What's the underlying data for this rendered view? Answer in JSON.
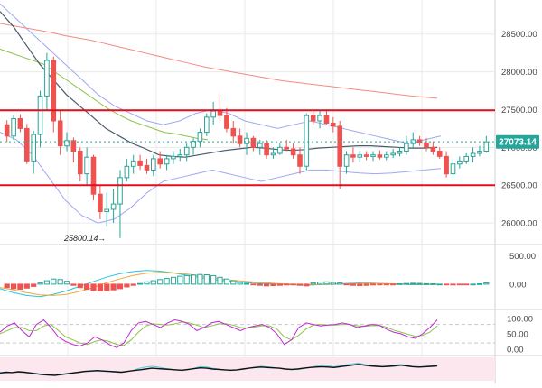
{
  "colors": {
    "up": "#26a69a",
    "up_fill": "#ffffff",
    "down": "#ef5350",
    "level_line": "#e0101e",
    "price_badge": "#26a69a",
    "ma_long": "#f28b82",
    "ma_mid": "#8bc34a",
    "ma_short": "#4a5a6a",
    "bollinger": "#9fa8f0",
    "macd_line": "#26c6da",
    "signal_line": "#f4a742",
    "stoch_k": "#c026d3",
    "stoch_d": "#8bc34a",
    "osc": "#111111",
    "osc_alt": "#4dd0e1",
    "grid": "#eaeaea",
    "dashed_level": "#c8c8c8",
    "rsi_band": "#fde7ef",
    "axis_text": "#444444"
  },
  "chart_data": [
    {
      "type": "candlestick",
      "title": "",
      "y_axis_ticks": [
        "28500.00",
        "28000.00",
        "27500.00",
        "27000.00",
        "26500.00",
        "26000.00"
      ],
      "ylim": [
        25750,
        28950
      ],
      "last_price_label": "27073.14",
      "last_price": 27073.14,
      "low_annotation": "25800.14",
      "low_annotation_value": 25800.14,
      "horizontal_levels": [
        27490,
        26500
      ],
      "candles": [
        [
          27300,
          27360,
          27070,
          27150
        ],
        [
          27150,
          27420,
          27100,
          27380
        ],
        [
          27380,
          27440,
          27200,
          27250
        ],
        [
          27250,
          27310,
          26780,
          26820
        ],
        [
          26820,
          27220,
          26650,
          27170
        ],
        [
          27170,
          27750,
          27000,
          27680
        ],
        [
          27680,
          28250,
          27500,
          28150
        ],
        [
          28150,
          28200,
          27200,
          27350
        ],
        [
          27350,
          27500,
          26900,
          27020
        ],
        [
          27020,
          27200,
          26950,
          27090
        ],
        [
          27090,
          27130,
          26800,
          26950
        ],
        [
          26950,
          27000,
          26550,
          26650
        ],
        [
          26650,
          27000,
          26500,
          26870
        ],
        [
          26870,
          26900,
          26300,
          26380
        ],
        [
          26380,
          26500,
          26050,
          26150
        ],
        [
          26150,
          26400,
          25950,
          26180
        ],
        [
          26180,
          26450,
          26000,
          26250
        ],
        [
          26250,
          26700,
          25800,
          26600
        ],
        [
          26600,
          26850,
          26550,
          26750
        ],
        [
          26750,
          26900,
          26650,
          26820
        ],
        [
          26820,
          26900,
          26700,
          26760
        ],
        [
          26760,
          26850,
          26650,
          26700
        ],
        [
          26700,
          26900,
          26620,
          26850
        ],
        [
          26850,
          26950,
          26720,
          26780
        ],
        [
          26780,
          26900,
          26700,
          26850
        ],
        [
          26850,
          26950,
          26780,
          26880
        ],
        [
          26880,
          26980,
          26820,
          26900
        ],
        [
          26900,
          27050,
          26820,
          27000
        ],
        [
          27000,
          27120,
          26900,
          27080
        ],
        [
          27080,
          27250,
          27000,
          27200
        ],
        [
          27200,
          27450,
          27150,
          27400
        ],
        [
          27400,
          27600,
          27300,
          27480
        ],
        [
          27480,
          27700,
          27350,
          27420
        ],
        [
          27420,
          27520,
          27200,
          27250
        ],
        [
          27250,
          27350,
          27050,
          27150
        ],
        [
          27150,
          27250,
          27000,
          27050
        ],
        [
          27050,
          27200,
          26900,
          27120
        ],
        [
          27120,
          27150,
          26950,
          27000
        ],
        [
          27000,
          27100,
          26900,
          27050
        ],
        [
          27050,
          27100,
          26850,
          26900
        ],
        [
          26900,
          27000,
          26850,
          26920
        ],
        [
          26920,
          27050,
          26900,
          27000
        ],
        [
          27000,
          27100,
          26950,
          26980
        ],
        [
          26980,
          27050,
          26850,
          26900
        ],
        [
          26900,
          27000,
          26650,
          26750
        ],
        [
          26750,
          27450,
          26700,
          27420
        ],
        [
          27420,
          27500,
          27300,
          27350
        ],
        [
          27350,
          27480,
          27250,
          27420
        ],
        [
          27420,
          27480,
          27300,
          27320
        ],
        [
          27320,
          27400,
          27200,
          27280
        ],
        [
          27280,
          27350,
          26450,
          26750
        ],
        [
          26750,
          26950,
          26650,
          26900
        ],
        [
          26900,
          27000,
          26800,
          26870
        ],
        [
          26870,
          26950,
          26800,
          26900
        ],
        [
          26900,
          26950,
          26830,
          26880
        ],
        [
          26880,
          26950,
          26820,
          26900
        ],
        [
          26900,
          26960,
          26840,
          26870
        ],
        [
          26870,
          26950,
          26830,
          26900
        ],
        [
          26900,
          26980,
          26860,
          26920
        ],
        [
          26920,
          27000,
          26880,
          26950
        ],
        [
          26950,
          27150,
          26900,
          27050
        ],
        [
          27050,
          27200,
          26980,
          27100
        ],
        [
          27100,
          27150,
          27020,
          27060
        ],
        [
          27060,
          27120,
          26950,
          27000
        ],
        [
          27000,
          27080,
          26900,
          26950
        ],
        [
          26950,
          27000,
          26850,
          26880
        ],
        [
          26880,
          26950,
          26600,
          26650
        ],
        [
          26650,
          26850,
          26600,
          26780
        ],
        [
          26780,
          26880,
          26720,
          26820
        ],
        [
          26820,
          26920,
          26780,
          26880
        ],
        [
          26880,
          27000,
          26800,
          26920
        ],
        [
          26920,
          27020,
          26880,
          26950
        ],
        [
          26950,
          27150,
          26930,
          27073
        ]
      ],
      "ma_long": [
        28640,
        28610,
        28580,
        28550,
        28520,
        28480,
        28450,
        28420,
        28380,
        28340,
        28300,
        28260,
        28220,
        28180,
        28140,
        28100,
        28060,
        28030,
        28000,
        27970,
        27940,
        27910,
        27880,
        27860,
        27840,
        27820,
        27800,
        27780,
        27760,
        27740,
        27720,
        27700,
        27680,
        27665,
        27650
      ],
      "ma_mid": [
        28300,
        28250,
        28200,
        28150,
        28100,
        28000,
        27900,
        27800,
        27700,
        27600,
        27500,
        27420,
        27350,
        27300,
        27250,
        27200,
        27180,
        27150,
        27120,
        27100
      ],
      "ma_short": [
        28800,
        28600,
        28350,
        28100,
        27900,
        27700,
        27550,
        27400,
        27250,
        27150,
        27050,
        26980,
        26900,
        26880,
        26870,
        26900,
        26930,
        26960,
        26980,
        27000,
        26990,
        26970,
        26960,
        26970,
        26990,
        27000,
        27010,
        27020,
        27020,
        27010,
        27000,
        26990,
        26990,
        27000
      ],
      "boll_upper": [
        28900,
        28700,
        28500,
        28300,
        28100,
        27900,
        27700,
        27550,
        27450,
        27350,
        27300,
        27350,
        27450,
        27500,
        27450,
        27350,
        27300,
        27250,
        27300,
        27350,
        27300,
        27250,
        27200,
        27150,
        27100,
        27050,
        27100,
        27150
      ],
      "boll_lower": [
        27200,
        27100,
        26900,
        26600,
        26300,
        26100,
        26000,
        26050,
        26200,
        26400,
        26550,
        26600,
        26650,
        26700,
        26650,
        26600,
        26550,
        26600,
        26650,
        26700,
        26700,
        26680,
        26660,
        26650,
        26660,
        26680,
        26700,
        26720
      ]
    },
    {
      "type": "bar",
      "title": "",
      "y_axis_ticks": [
        "500.00",
        "0.00"
      ],
      "ylim": [
        -400,
        650
      ],
      "histogram": [
        -60,
        -80,
        -90,
        -70,
        -40,
        20,
        60,
        90,
        80,
        50,
        -20,
        -60,
        -90,
        -110,
        -120,
        -115,
        -100,
        -80,
        -50,
        -20,
        10,
        40,
        60,
        80,
        100,
        120,
        140,
        150,
        160,
        170,
        165,
        150,
        120,
        90,
        60,
        30,
        10,
        -10,
        -20,
        -30,
        -25,
        -20,
        -15,
        -10,
        -20,
        -30,
        20,
        35,
        40,
        30,
        20,
        -10,
        -20,
        -25,
        -20,
        -15,
        -10,
        -10,
        -5,
        5,
        10,
        15,
        12,
        8,
        5,
        0,
        -10,
        -15,
        -10,
        -5,
        0,
        5,
        20
      ],
      "macd_line": [
        -80,
        -150,
        -200,
        -220,
        -180,
        -120,
        -40,
        40,
        120,
        180,
        220,
        240,
        230,
        200,
        160,
        120,
        80,
        60,
        40,
        20,
        10,
        0,
        -10,
        -20,
        -10,
        0,
        10,
        20,
        20,
        10,
        0,
        -10,
        -10,
        0
      ],
      "signal_line": [
        -60,
        -100,
        -150,
        -190,
        -200,
        -180,
        -130,
        -60,
        20,
        90,
        150,
        190,
        210,
        200,
        180,
        150,
        110,
        80,
        60,
        40,
        25,
        10,
        0,
        -10,
        -10,
        -5,
        0,
        10,
        15,
        10,
        5,
        0,
        -5,
        -5
      ]
    },
    {
      "type": "line",
      "title": "",
      "y_axis_ticks": [
        "100.00",
        "50.00",
        "0.00"
      ],
      "ylim": [
        -15,
        120
      ],
      "levels": [
        80,
        20
      ],
      "stoch_k": [
        55,
        75,
        85,
        60,
        40,
        80,
        95,
        70,
        40,
        25,
        15,
        10,
        20,
        40,
        30,
        15,
        5,
        20,
        60,
        85,
        90,
        80,
        70,
        85,
        95,
        90,
        80,
        60,
        70,
        85,
        90,
        80,
        70,
        60,
        70,
        75,
        80,
        70,
        50,
        15,
        30,
        70,
        85,
        80,
        75,
        78,
        80,
        85,
        80,
        70,
        75,
        80,
        78,
        65,
        55,
        50,
        40,
        35,
        50,
        70,
        95
      ],
      "stoch_d": [
        50,
        60,
        70,
        70,
        60,
        60,
        75,
        80,
        60,
        40,
        30,
        20,
        15,
        25,
        30,
        25,
        15,
        12,
        30,
        55,
        75,
        82,
        80,
        78,
        82,
        88,
        85,
        78,
        70,
        75,
        82,
        82,
        78,
        70,
        68,
        72,
        76,
        75,
        65,
        40,
        30,
        45,
        65,
        78,
        80,
        78,
        78,
        80,
        80,
        76,
        74,
        76,
        77,
        72,
        62,
        55,
        48,
        42,
        45,
        55,
        75
      ]
    },
    {
      "type": "line",
      "title": "",
      "y_axis_ticks": [],
      "oscillator": [
        40,
        42,
        41,
        43,
        42,
        40,
        38,
        36,
        35,
        34,
        36,
        38,
        40,
        42,
        44,
        45,
        46,
        45,
        44,
        43,
        42,
        44,
        46,
        48,
        50,
        52,
        51,
        50,
        49,
        48,
        47,
        49,
        51,
        53,
        52,
        50,
        49,
        48,
        47,
        48,
        50,
        52,
        54,
        55,
        54,
        53,
        52,
        50,
        49,
        50,
        52,
        54,
        55,
        56,
        55,
        54,
        56,
        58,
        60,
        62,
        60,
        58,
        57,
        56,
        57,
        58,
        60,
        58,
        56,
        55,
        56,
        57,
        58
      ],
      "oscillator_alt": [
        38,
        40,
        41,
        42,
        41,
        39,
        37,
        35,
        34,
        33,
        35,
        37,
        39,
        41,
        43,
        44,
        45,
        44,
        43,
        42,
        41,
        43,
        47,
        52,
        55,
        57,
        55,
        52,
        50,
        48,
        46,
        48,
        52,
        56,
        55,
        52,
        50,
        48,
        46,
        47,
        49,
        52,
        55,
        57,
        56,
        54,
        52,
        50,
        48,
        49,
        51,
        54,
        57,
        60,
        58,
        56,
        58,
        61,
        63,
        65,
        62,
        59,
        58,
        57,
        58,
        60,
        62,
        59,
        57,
        56,
        57,
        58,
        60
      ]
    }
  ]
}
